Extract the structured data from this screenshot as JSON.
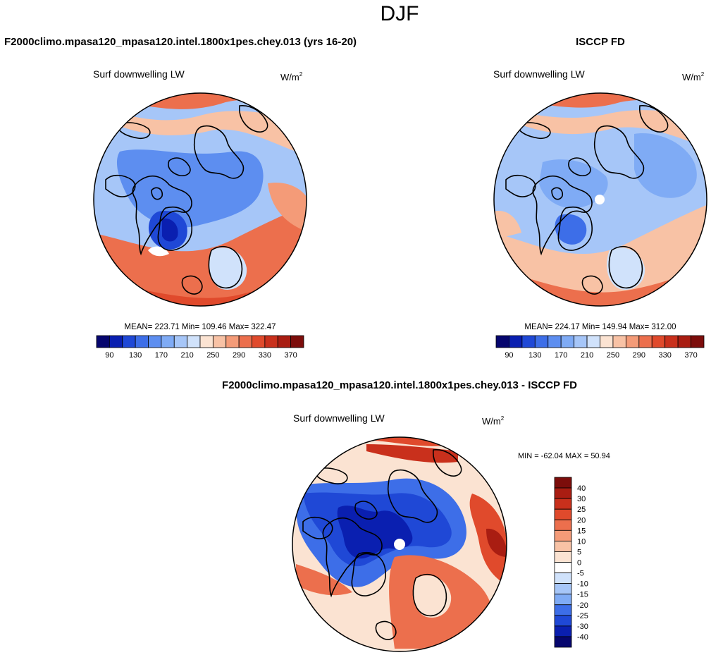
{
  "figure_title": "DJF",
  "chart_data": [
    {
      "type": "map",
      "name": "model",
      "title": "F2000climo.mpasa120_mpasa120.intel.1800x1pes.chey.013 (yrs 16-20)",
      "variable": "Surf downwelling LW",
      "units": "W/m",
      "units_sup": "2",
      "stats": "MEAN= 223.71  Min= 109.46  Max= 322.47",
      "mean": 223.71,
      "min": 109.46,
      "max": 322.47,
      "colorbar_labels": [
        "90",
        "130",
        "170",
        "210",
        "250",
        "290",
        "330",
        "370"
      ],
      "colorbar_levels": [
        80,
        90,
        110,
        130,
        150,
        170,
        190,
        210,
        230,
        250,
        270,
        290,
        310,
        330,
        350,
        370
      ],
      "colorbar_colors": [
        "#06066e",
        "#0a1fb0",
        "#1f48d6",
        "#3d6ee8",
        "#5d8ef0",
        "#7fabf5",
        "#a6c6f8",
        "#d0e2fb",
        "#fbe3d2",
        "#f8c2a5",
        "#f49b78",
        "#ec6f4d",
        "#e04a2c",
        "#c9301c",
        "#a91d12",
        "#7c0d0b"
      ],
      "mean_value_index": 7.2
    },
    {
      "type": "map",
      "name": "obs",
      "title": "ISCCP FD",
      "variable": "Surf downwelling LW",
      "units": "W/m",
      "units_sup": "2",
      "stats": "MEAN= 224.17  Min= 149.94  Max= 312.00",
      "mean": 224.17,
      "min": 149.94,
      "max": 312.0,
      "colorbar_labels": [
        "90",
        "130",
        "170",
        "210",
        "250",
        "290",
        "330",
        "370"
      ],
      "colorbar_colors": [
        "#06066e",
        "#0a1fb0",
        "#1f48d6",
        "#3d6ee8",
        "#5d8ef0",
        "#7fabf5",
        "#a6c6f8",
        "#d0e2fb",
        "#fbe3d2",
        "#f8c2a5",
        "#f49b78",
        "#ec6f4d",
        "#e04a2c",
        "#c9301c",
        "#a91d12",
        "#7c0d0b"
      ]
    },
    {
      "type": "map",
      "name": "difference",
      "title": "F2000climo.mpasa120_mpasa120.intel.1800x1pes.chey.013 - ISCCP FD",
      "variable": "Surf downwelling LW",
      "units": "W/m",
      "units_sup": "2",
      "stats": "MIN = -62.04 MAX =  50.94",
      "min": -62.04,
      "max": 50.94,
      "colorbar_labels": [
        "40",
        "30",
        "25",
        "20",
        "15",
        "10",
        "5",
        "0",
        "-5",
        "-10",
        "-15",
        "-20",
        "-25",
        "-30",
        "-40"
      ],
      "colorbar_colors": [
        "#7c0d0b",
        "#a91d12",
        "#c9301c",
        "#e04a2c",
        "#ec6f4d",
        "#f49b78",
        "#f8c2a5",
        "#fbe3d2",
        "#ffffff",
        "#d0e2fb",
        "#a6c6f8",
        "#7fabf5",
        "#3d6ee8",
        "#1f48d6",
        "#0a1fb0",
        "#06066e"
      ]
    }
  ]
}
